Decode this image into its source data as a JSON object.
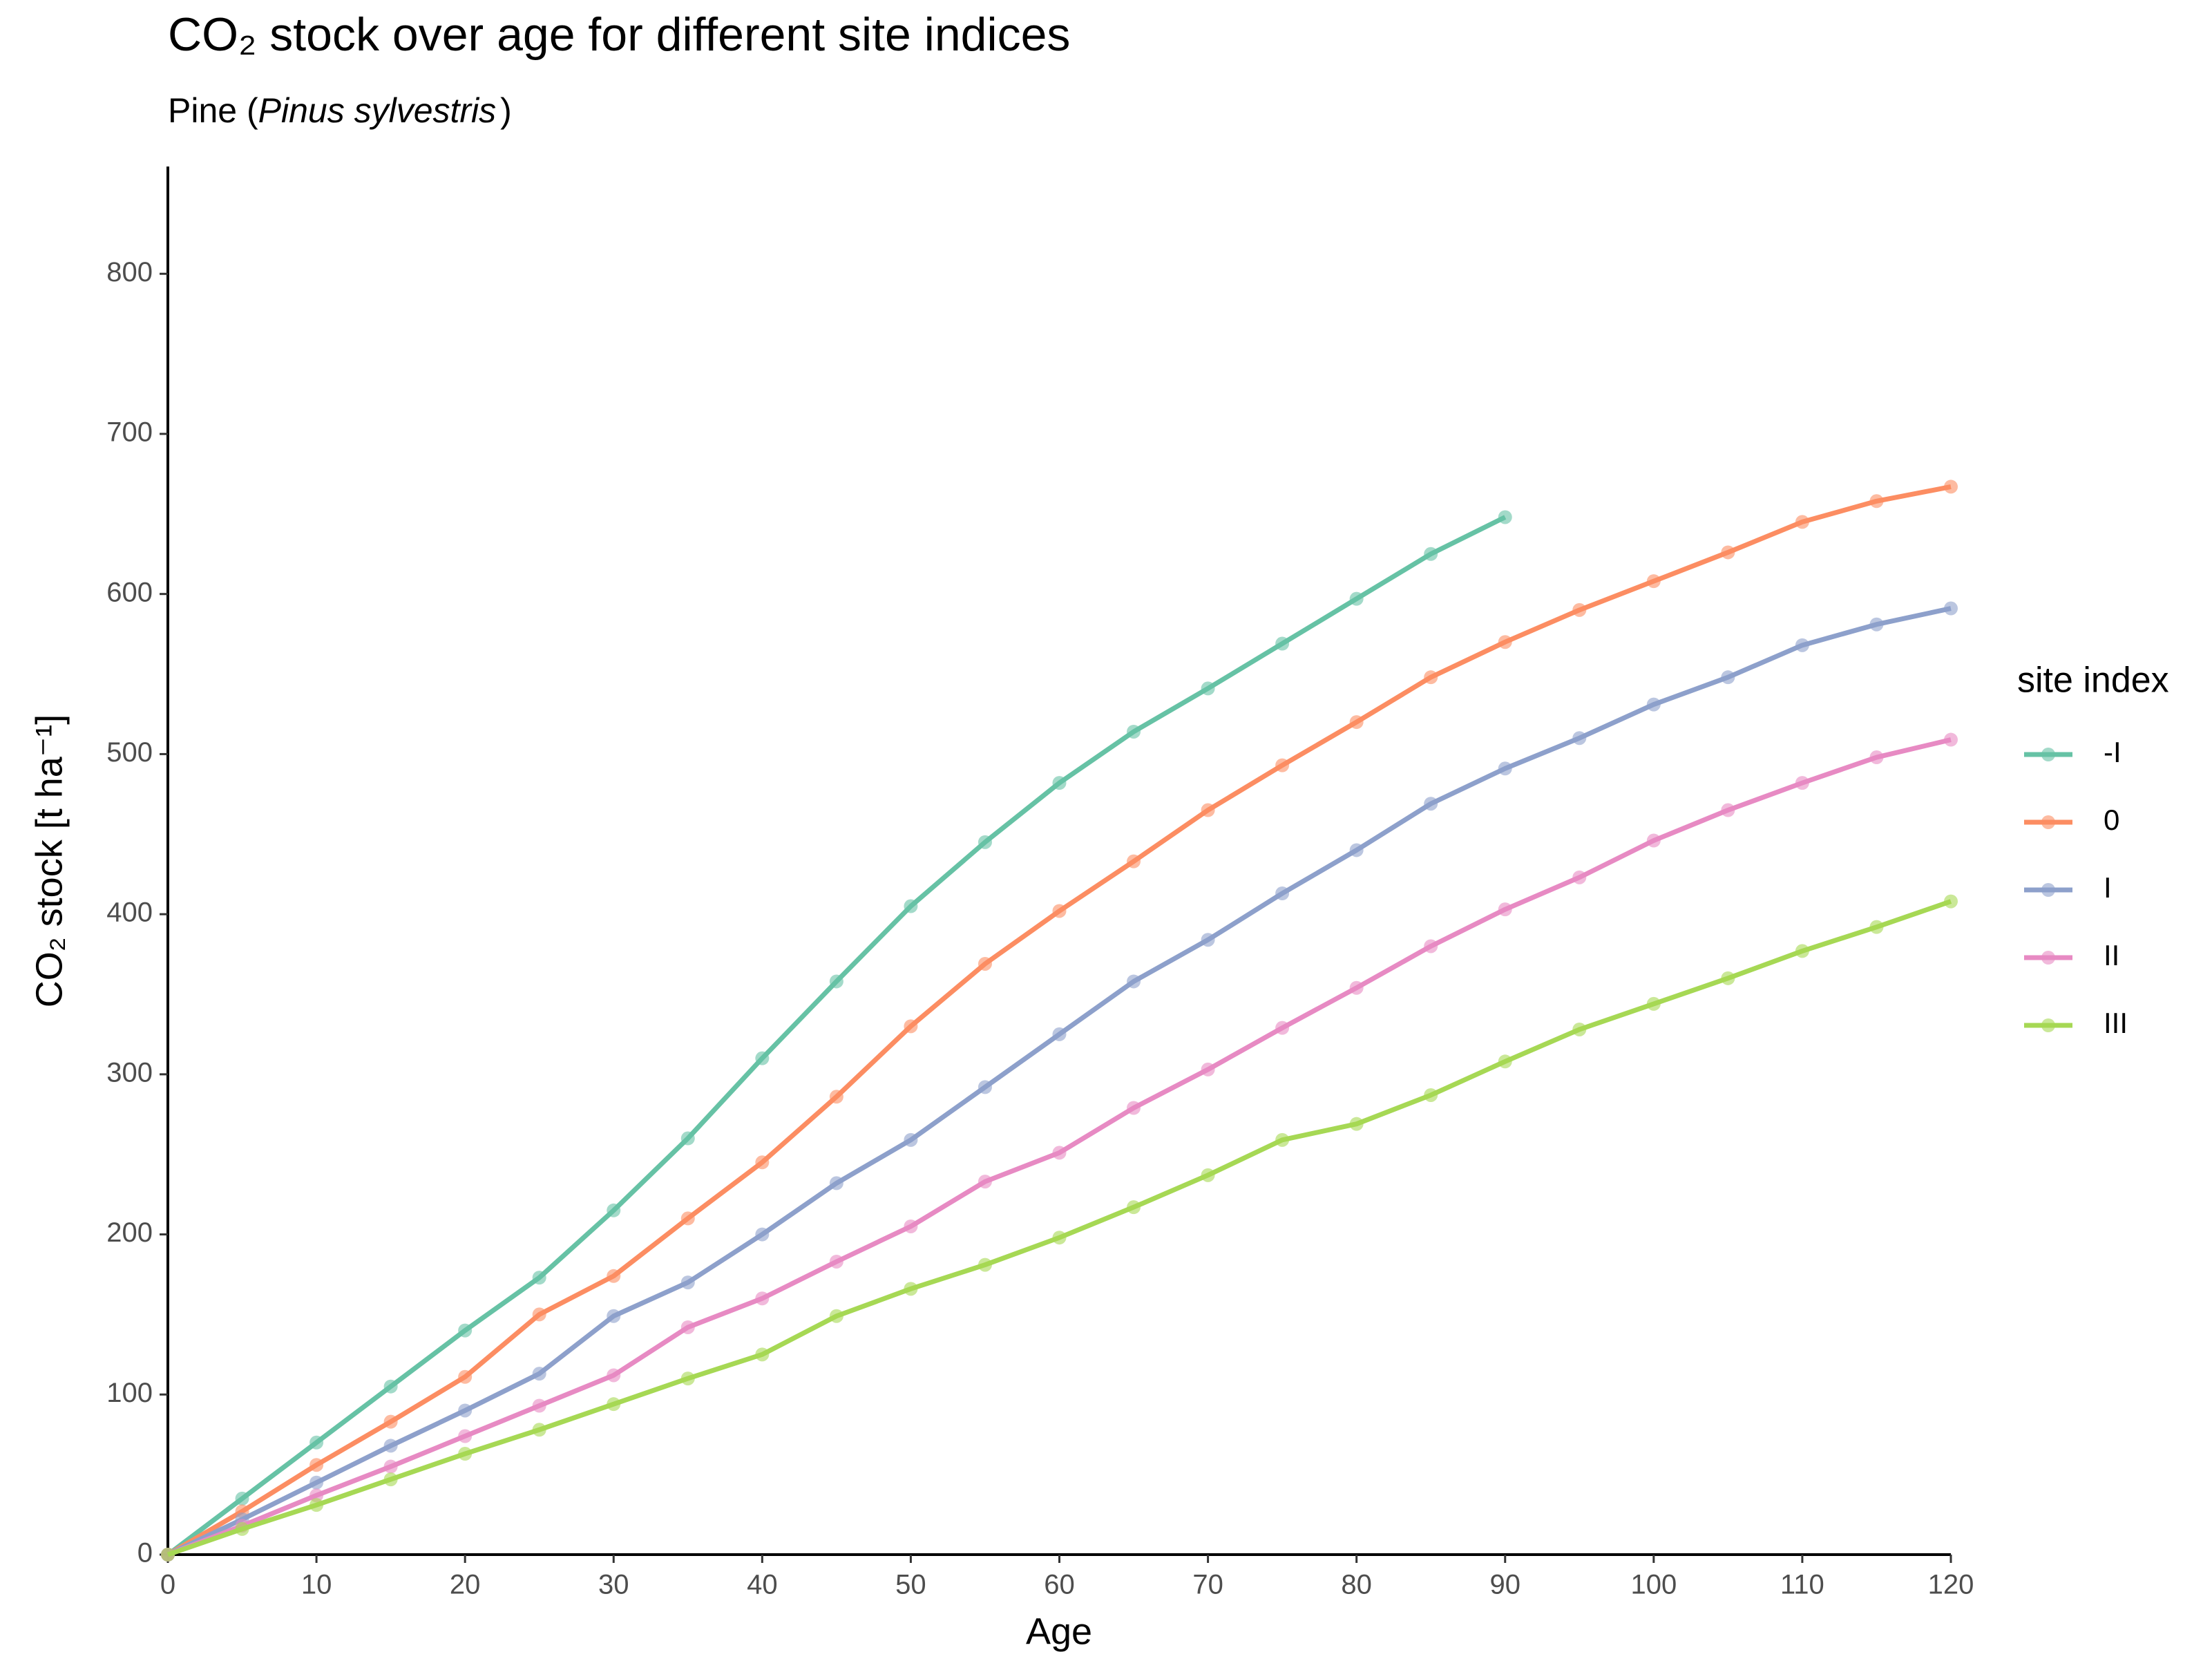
{
  "chart_data": {
    "type": "line",
    "title": "CO₂ stock over age for different site indices",
    "subtitle": [
      "Pine (",
      "Pinus sylvestris",
      ")"
    ],
    "x_label": "Age",
    "y_label": "CO₂ stock [t ha⁻¹]",
    "legend_title": "site index",
    "legend_position": "right",
    "x": [
      0,
      5,
      10,
      15,
      20,
      25,
      30,
      35,
      40,
      45,
      50,
      55,
      60,
      65,
      70,
      75,
      80,
      85,
      90,
      95,
      100,
      105,
      110,
      115,
      120
    ],
    "series": [
      {
        "name": "-I",
        "color": "#66c2a5",
        "values": [
          0,
          35,
          70,
          105,
          140,
          173,
          215,
          260,
          310,
          358,
          405,
          445,
          482,
          514,
          541,
          569,
          597,
          625,
          648,
          null,
          null,
          null,
          null,
          null,
          null
        ]
      },
      {
        "name": "0",
        "color": "#fc8d62",
        "values": [
          0,
          27,
          56,
          83,
          111,
          150,
          174,
          210,
          245,
          286,
          330,
          369,
          402,
          433,
          465,
          493,
          520,
          548,
          570,
          590,
          608,
          626,
          645,
          658,
          667
        ]
      },
      {
        "name": "I",
        "color": "#8da0cb",
        "values": [
          0,
          22,
          45,
          68,
          90,
          113,
          149,
          170,
          200,
          232,
          259,
          292,
          325,
          358,
          384,
          413,
          440,
          469,
          491,
          510,
          531,
          548,
          568,
          581,
          591
        ]
      },
      {
        "name": "II",
        "color": "#e78ac3",
        "values": [
          0,
          18,
          37,
          55,
          74,
          93,
          112,
          142,
          160,
          183,
          205,
          233,
          251,
          279,
          303,
          329,
          354,
          380,
          403,
          423,
          446,
          465,
          482,
          498,
          509
        ]
      },
      {
        "name": "III",
        "color": "#a6d854",
        "values": [
          0,
          16,
          31,
          47,
          63,
          78,
          94,
          110,
          125,
          149,
          166,
          181,
          198,
          217,
          237,
          259,
          269,
          287,
          308,
          328,
          344,
          360,
          377,
          392,
          408
        ]
      }
    ],
    "xlim": [
      0,
      120
    ],
    "xticks": [
      0,
      10,
      20,
      30,
      40,
      50,
      60,
      70,
      80,
      90,
      100,
      110,
      120
    ],
    "ylim": [
      0,
      867
    ],
    "yticks": [
      0,
      100,
      200,
      300,
      400,
      500,
      600,
      700,
      800
    ],
    "grid": false
  }
}
